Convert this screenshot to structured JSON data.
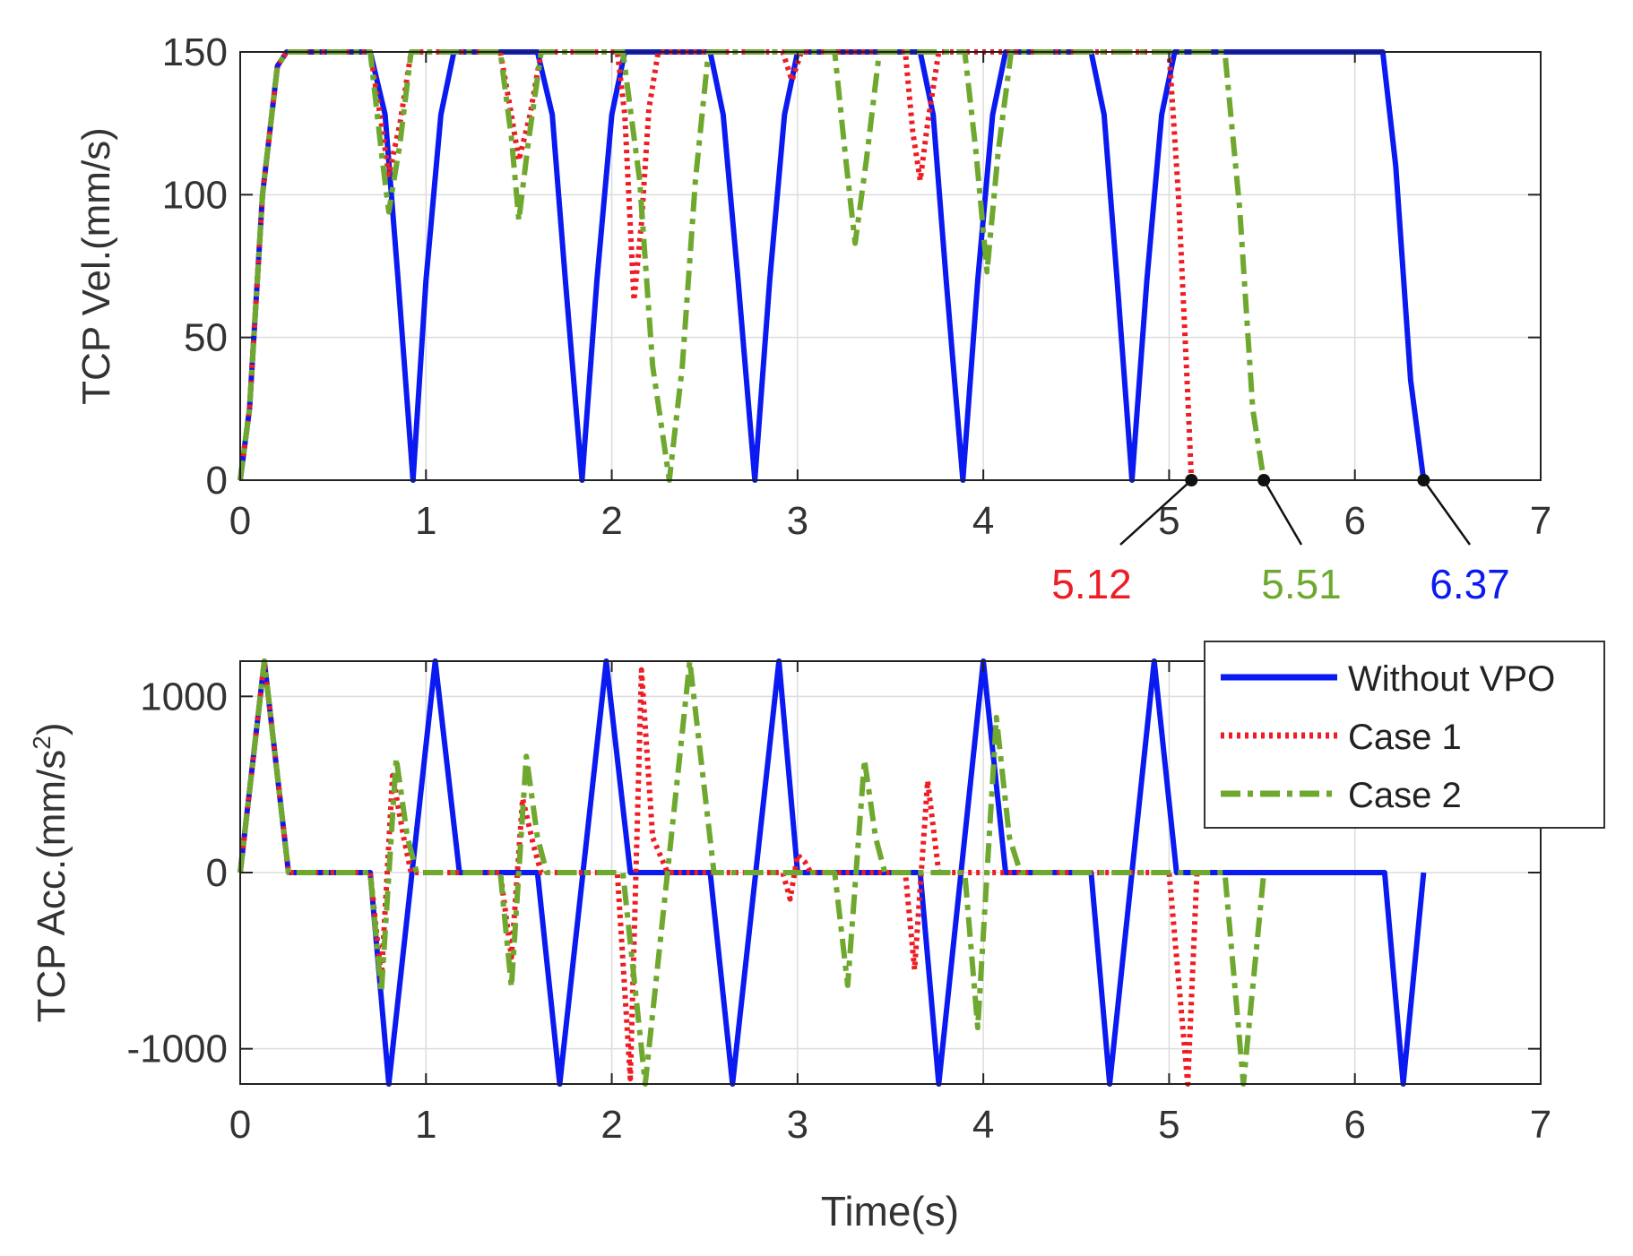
{
  "colors": {
    "without_vpo": "#0a1af0",
    "case1": "#ee1c24",
    "case2": "#6fa82f",
    "grid": "#dcdcdc",
    "axis": "#222222"
  },
  "chart_data": [
    {
      "type": "line",
      "ylabel": "TCP Vel.(mm/s)",
      "xlabel": "",
      "xlim": [
        0,
        7
      ],
      "ylim": [
        0,
        150
      ],
      "xticks": [
        "0",
        "1",
        "2",
        "3",
        "4",
        "5",
        "6",
        "7"
      ],
      "yticks": [
        "0",
        "50",
        "100",
        "150"
      ],
      "grid": true,
      "series": [
        {
          "name": "Without VPO",
          "style": "solid",
          "x": [
            0,
            0.05,
            0.12,
            0.2,
            0.25,
            0.7,
            0.78,
            0.85,
            0.93,
            1.0,
            1.08,
            1.15,
            1.6,
            1.68,
            1.75,
            1.84,
            1.92,
            2.0,
            2.07,
            2.53,
            2.6,
            2.68,
            2.77,
            2.85,
            2.93,
            3.0,
            3.66,
            3.73,
            3.8,
            3.89,
            3.97,
            4.05,
            4.12,
            4.58,
            4.65,
            4.72,
            4.8,
            4.88,
            4.96,
            5.03,
            6.15,
            6.22,
            6.3,
            6.37
          ],
          "y": [
            0,
            25,
            100,
            145,
            150,
            150,
            128,
            70,
            0,
            70,
            128,
            150,
            150,
            128,
            70,
            0,
            70,
            128,
            150,
            150,
            128,
            70,
            0,
            70,
            128,
            150,
            150,
            128,
            70,
            0,
            70,
            128,
            150,
            150,
            128,
            70,
            0,
            70,
            128,
            150,
            150,
            110,
            35,
            0
          ]
        },
        {
          "name": "Case 1",
          "style": "dotted",
          "x": [
            0,
            0.05,
            0.12,
            0.2,
            0.25,
            0.7,
            0.76,
            0.8,
            0.86,
            0.92,
            1.4,
            1.46,
            1.5,
            1.56,
            1.62,
            2.03,
            2.07,
            2.12,
            2.16,
            2.2,
            2.25,
            2.33,
            2.92,
            2.97,
            3.02,
            3.07,
            3.58,
            3.62,
            3.66,
            3.7,
            3.76,
            5.0,
            5.05,
            5.1,
            5.12
          ],
          "y": [
            0,
            25,
            100,
            145,
            150,
            150,
            125,
            107,
            125,
            150,
            150,
            128,
            112,
            128,
            150,
            150,
            128,
            63,
            90,
            130,
            150,
            150,
            150,
            140,
            150,
            150,
            150,
            122,
            105,
            125,
            150,
            150,
            100,
            30,
            0
          ]
        },
        {
          "name": "Case 2",
          "style": "dashdot",
          "x": [
            0,
            0.05,
            0.12,
            0.2,
            0.25,
            0.7,
            0.76,
            0.8,
            0.86,
            0.92,
            1.4,
            1.46,
            1.5,
            1.55,
            1.62,
            2.06,
            2.15,
            2.22,
            2.31,
            2.38,
            2.45,
            2.52,
            3.2,
            3.26,
            3.31,
            3.37,
            3.44,
            3.9,
            3.96,
            4.02,
            4.08,
            4.15,
            5.3,
            5.38,
            5.45,
            5.51
          ],
          "y": [
            0,
            25,
            100,
            145,
            150,
            150,
            115,
            94,
            118,
            150,
            150,
            120,
            91,
            118,
            150,
            150,
            105,
            40,
            0,
            40,
            105,
            150,
            150,
            112,
            83,
            112,
            150,
            150,
            115,
            73,
            115,
            150,
            150,
            95,
            25,
            0
          ]
        }
      ],
      "annotations": [
        {
          "text": "5.12",
          "x": 5.12,
          "y": 0,
          "color": "#ee1c24"
        },
        {
          "text": "5.51",
          "x": 5.51,
          "y": 0,
          "color": "#6fa82f"
        },
        {
          "text": "6.37",
          "x": 6.37,
          "y": 0,
          "color": "#0a1af0"
        }
      ]
    },
    {
      "type": "line",
      "ylabel": "TCP Acc.(mm/s",
      "ylabel_superscript": "2",
      "ylabel_suffix": ")",
      "xlabel": "Time(s)",
      "xlim": [
        0,
        7
      ],
      "ylim": [
        -1200,
        1200
      ],
      "xticks": [
        "0",
        "1",
        "2",
        "3",
        "4",
        "5",
        "6",
        "7"
      ],
      "yticks": [
        "-1000",
        "0",
        "1000"
      ],
      "grid": true,
      "legend": {
        "placement": "top-right",
        "entries": [
          "Without VPO",
          "Case 1",
          "Case 2"
        ]
      },
      "series": [
        {
          "name": "Without VPO",
          "style": "solid",
          "x": [
            0,
            0.13,
            0.26,
            0.7,
            0.8,
            1.05,
            1.18,
            1.6,
            1.72,
            1.97,
            2.1,
            2.53,
            2.65,
            2.9,
            3.0,
            3.66,
            3.76,
            4.0,
            4.12,
            4.58,
            4.68,
            4.92,
            5.04,
            6.16,
            6.26,
            6.37
          ],
          "y": [
            0,
            1200,
            0,
            0,
            -1200,
            1200,
            0,
            0,
            -1200,
            1200,
            0,
            0,
            -1200,
            1200,
            0,
            0,
            -1200,
            1200,
            0,
            0,
            -1200,
            1200,
            0,
            0,
            -1200,
            0
          ]
        },
        {
          "name": "Case 1",
          "style": "dotted",
          "x": [
            0,
            0.13,
            0.26,
            0.7,
            0.76,
            0.82,
            0.88,
            0.92,
            1.4,
            1.46,
            1.52,
            1.58,
            1.62,
            2.03,
            2.1,
            2.16,
            2.22,
            2.3,
            2.92,
            2.96,
            3.0,
            3.04,
            3.07,
            3.58,
            3.63,
            3.7,
            3.76,
            5.0,
            5.1,
            5.15
          ],
          "y": [
            0,
            1200,
            0,
            0,
            -600,
            550,
            200,
            0,
            0,
            -480,
            420,
            150,
            0,
            0,
            -1170,
            1150,
            200,
            0,
            0,
            -150,
            100,
            60,
            0,
            0,
            -550,
            520,
            0,
            0,
            -1200,
            0
          ]
        },
        {
          "name": "Case 2",
          "style": "dashdot",
          "x": [
            0,
            0.13,
            0.26,
            0.7,
            0.76,
            0.84,
            0.9,
            0.95,
            1.4,
            1.46,
            1.54,
            1.6,
            1.65,
            2.06,
            2.18,
            2.42,
            2.55,
            3.2,
            3.27,
            3.36,
            3.42,
            3.47,
            3.9,
            3.97,
            4.07,
            4.14,
            4.2,
            5.3,
            5.4,
            5.51
          ],
          "y": [
            0,
            1200,
            0,
            0,
            -680,
            650,
            200,
            0,
            0,
            -650,
            660,
            200,
            0,
            0,
            -1200,
            1200,
            0,
            0,
            -640,
            640,
            200,
            0,
            0,
            -880,
            880,
            200,
            0,
            0,
            -1200,
            0
          ]
        }
      ]
    }
  ]
}
